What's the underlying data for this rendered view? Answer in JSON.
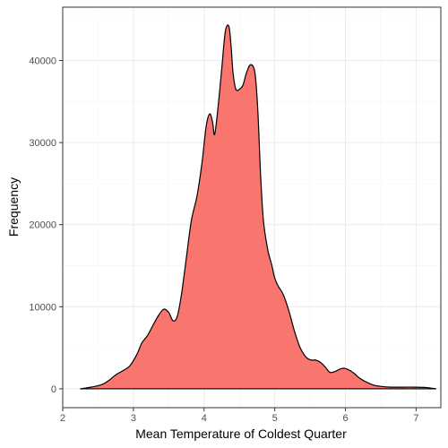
{
  "chart_data": {
    "type": "area",
    "title": "",
    "xlabel": "Mean Temperature of Coldest Quarter",
    "ylabel": "Frequency",
    "xlim": [
      2.0,
      7.35
    ],
    "ylim": [
      -2300,
      46500
    ],
    "x_ticks": [
      2,
      3,
      4,
      5,
      6,
      7
    ],
    "x_tick_labels": [
      "2",
      "3",
      "4",
      "5",
      "6",
      "7"
    ],
    "y_ticks": [
      0,
      10000,
      20000,
      30000,
      40000
    ],
    "y_tick_labels": [
      "0",
      "10000",
      "20000",
      "30000",
      "40000"
    ],
    "grid": true,
    "legend": "none",
    "colors": {
      "fill": "#F8766D",
      "stroke": "#000000",
      "panel_border": "#333333",
      "grid_major": "#ebebeb",
      "grid_minor": "#f5f5f5"
    },
    "series": [
      {
        "x": [
          2.25,
          2.4,
          2.55,
          2.65,
          2.75,
          2.85,
          2.95,
          3.05,
          3.12,
          3.2,
          3.28,
          3.36,
          3.43,
          3.5,
          3.56,
          3.62,
          3.68,
          3.75,
          3.82,
          3.9,
          3.97,
          4.03,
          4.08,
          4.12,
          4.15,
          4.2,
          4.25,
          4.3,
          4.35,
          4.38,
          4.41,
          4.45,
          4.5,
          4.55,
          4.6,
          4.66,
          4.72,
          4.76,
          4.8,
          4.84,
          4.9,
          4.96,
          5.0,
          5.05,
          5.12,
          5.2,
          5.28,
          5.36,
          5.45,
          5.52,
          5.58,
          5.65,
          5.72,
          5.78,
          5.85,
          5.92,
          5.98,
          6.05,
          6.12,
          6.2,
          6.3,
          6.4,
          6.5,
          6.65,
          6.8,
          7.0,
          7.15,
          7.28
        ],
        "y": [
          0,
          200,
          500,
          1000,
          1700,
          2200,
          2800,
          4200,
          5600,
          6500,
          7800,
          9000,
          9700,
          9300,
          8300,
          8800,
          11500,
          16000,
          20500,
          23500,
          27500,
          32000,
          33500,
          32500,
          31000,
          34500,
          39000,
          43500,
          44200,
          42000,
          38500,
          36500,
          36500,
          37000,
          38500,
          39500,
          38500,
          34000,
          26000,
          20500,
          17000,
          15000,
          13500,
          12500,
          11500,
          9500,
          7000,
          5000,
          3800,
          3500,
          3500,
          3200,
          2600,
          2000,
          2100,
          2400,
          2500,
          2300,
          1900,
          1300,
          800,
          450,
          300,
          200,
          200,
          200,
          150,
          0
        ]
      }
    ]
  }
}
